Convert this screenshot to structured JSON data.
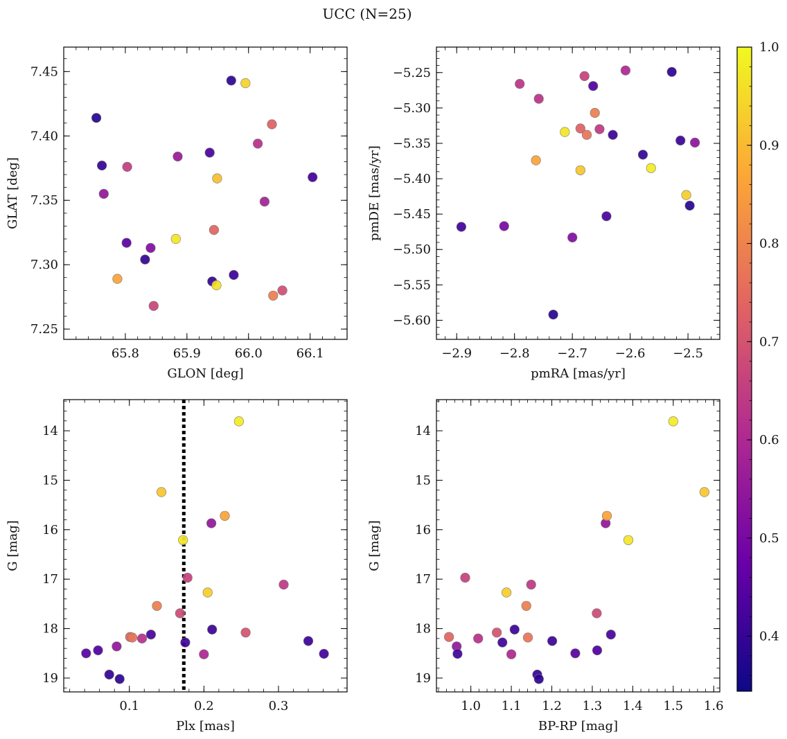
{
  "figure": {
    "title": "UCC (N=25)"
  },
  "colorbar": {
    "min": 0.344,
    "max": 1.0,
    "ticks": [
      0.4,
      0.5,
      0.6,
      0.7,
      0.8,
      0.9,
      1.0
    ],
    "tick_labels": [
      "0.4",
      "0.5",
      "0.6",
      "0.7",
      "0.8",
      "0.9",
      "1.0"
    ],
    "colormap": "plasma",
    "colors": [
      "#0d0887",
      "#6a00a8",
      "#b12a90",
      "#e16462",
      "#fca636",
      "#f0f921"
    ]
  },
  "chart_data": [
    {
      "type": "scatter",
      "title": "",
      "xlabel": "GLON [deg]",
      "ylabel": "GLAT [deg]",
      "xlim": [
        65.7,
        66.16
      ],
      "ylim": [
        7.242,
        7.469
      ],
      "xticks": [
        65.8,
        65.9,
        66.0,
        66.1
      ],
      "xtick_labels": [
        "65.8",
        "65.9",
        "66.0",
        "66.1"
      ],
      "yticks": [
        7.25,
        7.3,
        7.35,
        7.4,
        7.45
      ],
      "ytick_labels": [
        "7.25",
        "7.30",
        "7.35",
        "7.40",
        "7.45"
      ],
      "points": [
        {
          "x": 65.753,
          "y": 7.414,
          "p": 0.38
        },
        {
          "x": 65.762,
          "y": 7.377,
          "p": 0.4
        },
        {
          "x": 65.765,
          "y": 7.355,
          "p": 0.55
        },
        {
          "x": 65.787,
          "y": 7.289,
          "p": 0.86
        },
        {
          "x": 65.803,
          "y": 7.376,
          "p": 0.65
        },
        {
          "x": 65.802,
          "y": 7.317,
          "p": 0.46
        },
        {
          "x": 65.832,
          "y": 7.304,
          "p": 0.4
        },
        {
          "x": 65.841,
          "y": 7.313,
          "p": 0.52
        },
        {
          "x": 65.846,
          "y": 7.268,
          "p": 0.67
        },
        {
          "x": 65.882,
          "y": 7.32,
          "p": 0.97
        },
        {
          "x": 65.885,
          "y": 7.384,
          "p": 0.56
        },
        {
          "x": 65.937,
          "y": 7.387,
          "p": 0.43
        },
        {
          "x": 65.941,
          "y": 7.287,
          "p": 0.4
        },
        {
          "x": 65.944,
          "y": 7.327,
          "p": 0.74
        },
        {
          "x": 65.948,
          "y": 7.284,
          "p": 0.96
        },
        {
          "x": 65.949,
          "y": 7.367,
          "p": 0.91
        },
        {
          "x": 65.972,
          "y": 7.443,
          "p": 0.39
        },
        {
          "x": 65.976,
          "y": 7.292,
          "p": 0.41
        },
        {
          "x": 65.995,
          "y": 7.441,
          "p": 0.94
        },
        {
          "x": 66.015,
          "y": 7.394,
          "p": 0.62
        },
        {
          "x": 66.026,
          "y": 7.349,
          "p": 0.58
        },
        {
          "x": 66.038,
          "y": 7.409,
          "p": 0.73
        },
        {
          "x": 66.04,
          "y": 7.276,
          "p": 0.79
        },
        {
          "x": 66.055,
          "y": 7.28,
          "p": 0.69
        },
        {
          "x": 66.104,
          "y": 7.368,
          "p": 0.42
        }
      ]
    },
    {
      "type": "scatter",
      "title": "",
      "xlabel": "pmRA [mas/yr]",
      "ylabel": "pmDE [mas/yr]",
      "xlim": [
        -2.935,
        -2.445
      ],
      "ylim": [
        -5.627,
        -5.214
      ],
      "xticks": [
        -2.9,
        -2.8,
        -2.7,
        -2.6,
        -2.5
      ],
      "xtick_labels": [
        "−2.9",
        "−2.8",
        "−2.7",
        "−2.6",
        "−2.5"
      ],
      "yticks": [
        -5.6,
        -5.55,
        -5.5,
        -5.45,
        -5.4,
        -5.35,
        -5.3,
        -5.25
      ],
      "ytick_labels": [
        "−5.60",
        "−5.55",
        "−5.50",
        "−5.45",
        "−5.40",
        "−5.35",
        "−5.30",
        "−5.25"
      ],
      "points": [
        {
          "x": -2.892,
          "y": -5.468,
          "p": 0.42
        },
        {
          "x": -2.818,
          "y": -5.467,
          "p": 0.5
        },
        {
          "x": -2.791,
          "y": -5.266,
          "p": 0.63
        },
        {
          "x": -2.763,
          "y": -5.374,
          "p": 0.86
        },
        {
          "x": -2.758,
          "y": -5.287,
          "p": 0.63
        },
        {
          "x": -2.733,
          "y": -5.592,
          "p": 0.38
        },
        {
          "x": -2.713,
          "y": -5.334,
          "p": 0.97
        },
        {
          "x": -2.7,
          "y": -5.483,
          "p": 0.52
        },
        {
          "x": -2.686,
          "y": -5.329,
          "p": 0.73
        },
        {
          "x": -2.686,
          "y": -5.388,
          "p": 0.92
        },
        {
          "x": -2.679,
          "y": -5.255,
          "p": 0.66
        },
        {
          "x": -2.675,
          "y": -5.338,
          "p": 0.77
        },
        {
          "x": -2.664,
          "y": -5.269,
          "p": 0.44
        },
        {
          "x": -2.661,
          "y": -5.307,
          "p": 0.79
        },
        {
          "x": -2.653,
          "y": -5.33,
          "p": 0.64
        },
        {
          "x": -2.641,
          "y": -5.453,
          "p": 0.43
        },
        {
          "x": -2.63,
          "y": -5.338,
          "p": 0.41
        },
        {
          "x": -2.608,
          "y": -5.247,
          "p": 0.6
        },
        {
          "x": -2.578,
          "y": -5.366,
          "p": 0.4
        },
        {
          "x": -2.564,
          "y": -5.385,
          "p": 0.98
        },
        {
          "x": -2.528,
          "y": -5.249,
          "p": 0.39
        },
        {
          "x": -2.513,
          "y": -5.346,
          "p": 0.41
        },
        {
          "x": -2.503,
          "y": -5.423,
          "p": 0.93
        },
        {
          "x": -2.497,
          "y": -5.438,
          "p": 0.38
        },
        {
          "x": -2.488,
          "y": -5.349,
          "p": 0.54
        }
      ]
    },
    {
      "type": "scatter",
      "title": "",
      "xlabel": "Plx [mas]",
      "ylabel": "G [mag]",
      "xlim": [
        0.012,
        0.392
      ],
      "ylim": [
        19.28,
        13.37
      ],
      "y_inverted": true,
      "xticks": [
        0.1,
        0.2,
        0.3
      ],
      "xtick_labels": [
        "0.1",
        "0.2",
        "0.3"
      ],
      "yticks": [
        14,
        15,
        16,
        17,
        18,
        19
      ],
      "ytick_labels": [
        "14",
        "15",
        "16",
        "17",
        "18",
        "19"
      ],
      "vline": {
        "x": 0.173,
        "style": "dotted"
      },
      "points": [
        {
          "x": 0.042,
          "y": 18.5,
          "p": 0.45
        },
        {
          "x": 0.058,
          "y": 18.44,
          "p": 0.44
        },
        {
          "x": 0.073,
          "y": 18.93,
          "p": 0.4
        },
        {
          "x": 0.083,
          "y": 18.36,
          "p": 0.55
        },
        {
          "x": 0.087,
          "y": 19.02,
          "p": 0.39
        },
        {
          "x": 0.101,
          "y": 18.17,
          "p": 0.74
        },
        {
          "x": 0.104,
          "y": 18.18,
          "p": 0.77
        },
        {
          "x": 0.117,
          "y": 18.2,
          "p": 0.62
        },
        {
          "x": 0.129,
          "y": 18.12,
          "p": 0.43
        },
        {
          "x": 0.137,
          "y": 17.54,
          "p": 0.79
        },
        {
          "x": 0.143,
          "y": 15.24,
          "p": 0.92
        },
        {
          "x": 0.168,
          "y": 17.69,
          "p": 0.68
        },
        {
          "x": 0.172,
          "y": 16.21,
          "p": 0.97
        },
        {
          "x": 0.175,
          "y": 18.28,
          "p": 0.42
        },
        {
          "x": 0.178,
          "y": 16.97,
          "p": 0.66
        },
        {
          "x": 0.2,
          "y": 18.52,
          "p": 0.6
        },
        {
          "x": 0.205,
          "y": 17.27,
          "p": 0.93
        },
        {
          "x": 0.21,
          "y": 15.87,
          "p": 0.55
        },
        {
          "x": 0.211,
          "y": 18.02,
          "p": 0.41
        },
        {
          "x": 0.228,
          "y": 15.72,
          "p": 0.86
        },
        {
          "x": 0.247,
          "y": 13.81,
          "p": 0.98
        },
        {
          "x": 0.256,
          "y": 18.08,
          "p": 0.7
        },
        {
          "x": 0.307,
          "y": 17.11,
          "p": 0.64
        },
        {
          "x": 0.34,
          "y": 18.25,
          "p": 0.41
        },
        {
          "x": 0.361,
          "y": 18.51,
          "p": 0.42
        }
      ]
    },
    {
      "type": "scatter",
      "title": "",
      "xlabel": "BP-RP [mag]",
      "ylabel": "G [mag]",
      "xlim": [
        0.915,
        1.615
      ],
      "ylim": [
        19.28,
        13.37
      ],
      "y_inverted": true,
      "xticks": [
        1.0,
        1.1,
        1.2,
        1.3,
        1.4,
        1.5,
        1.6
      ],
      "xtick_labels": [
        "1.0",
        "1.1",
        "1.2",
        "1.3",
        "1.4",
        "1.5",
        "1.6"
      ],
      "yticks": [
        14,
        15,
        16,
        17,
        18,
        19
      ],
      "ytick_labels": [
        "14",
        "15",
        "16",
        "17",
        "18",
        "19"
      ],
      "points": [
        {
          "x": 0.946,
          "y": 18.17,
          "p": 0.74
        },
        {
          "x": 0.965,
          "y": 18.36,
          "p": 0.55
        },
        {
          "x": 0.967,
          "y": 18.51,
          "p": 0.42
        },
        {
          "x": 0.986,
          "y": 16.97,
          "p": 0.66
        },
        {
          "x": 1.018,
          "y": 18.2,
          "p": 0.62
        },
        {
          "x": 1.064,
          "y": 18.08,
          "p": 0.7
        },
        {
          "x": 1.078,
          "y": 18.28,
          "p": 0.42
        },
        {
          "x": 1.088,
          "y": 17.27,
          "p": 0.93
        },
        {
          "x": 1.1,
          "y": 18.52,
          "p": 0.6
        },
        {
          "x": 1.108,
          "y": 18.02,
          "p": 0.41
        },
        {
          "x": 1.137,
          "y": 17.54,
          "p": 0.79
        },
        {
          "x": 1.141,
          "y": 18.18,
          "p": 0.77
        },
        {
          "x": 1.149,
          "y": 17.11,
          "p": 0.64
        },
        {
          "x": 1.164,
          "y": 18.93,
          "p": 0.4
        },
        {
          "x": 1.168,
          "y": 19.02,
          "p": 0.39
        },
        {
          "x": 1.201,
          "y": 18.25,
          "p": 0.41
        },
        {
          "x": 1.258,
          "y": 18.5,
          "p": 0.45
        },
        {
          "x": 1.311,
          "y": 17.69,
          "p": 0.68
        },
        {
          "x": 1.312,
          "y": 18.44,
          "p": 0.44
        },
        {
          "x": 1.333,
          "y": 15.87,
          "p": 0.55
        },
        {
          "x": 1.336,
          "y": 15.72,
          "p": 0.86
        },
        {
          "x": 1.346,
          "y": 18.12,
          "p": 0.43
        },
        {
          "x": 1.389,
          "y": 16.21,
          "p": 0.97
        },
        {
          "x": 1.5,
          "y": 13.81,
          "p": 0.98
        },
        {
          "x": 1.577,
          "y": 15.24,
          "p": 0.92
        }
      ]
    }
  ]
}
